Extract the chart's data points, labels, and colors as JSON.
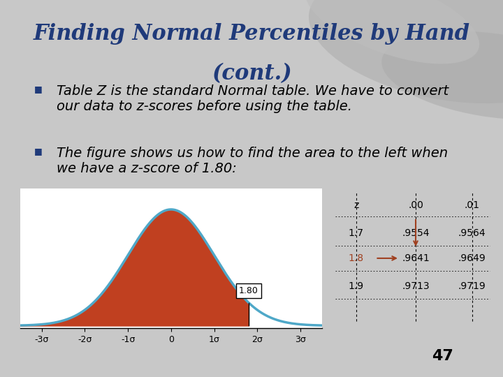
{
  "title_line1": "Finding Normal Percentiles by Hand",
  "title_line2": "(cont.)",
  "title_color": "#1F3A7A",
  "title_fontsize": 22,
  "bullet1": "Table Z is the standard Normal table. We have to convert\nour data to z-scores before using the table.",
  "bullet2": "The figure shows us how to find the area to the left when\nwe have a z-score of 1.80:",
  "bullet_fontsize": 14,
  "bullet_color": "#000000",
  "slide_bg": "#C8C8C8",
  "page_number": "47",
  "curve_color": "#4FA8C8",
  "fill_color": "#C04020",
  "table_headers": [
    "z",
    ".00",
    ".01"
  ],
  "table_rows": [
    [
      "1.7",
      ".9554",
      ".9564"
    ],
    [
      "1.8",
      ".9641",
      ".9649"
    ],
    [
      "1.9",
      ".9713",
      ".9719"
    ]
  ],
  "arrow_color": "#A04020",
  "z_label_box": "1.80",
  "x_tick_labels": [
    "-3σ",
    "-2σ",
    "-1σ",
    "0",
    "1σ",
    "2σ",
    "3σ"
  ],
  "x_tick_positions": [
    -3,
    -2,
    -1,
    0,
    1,
    2,
    3
  ],
  "bullet_square_color": "#1F3A7A"
}
